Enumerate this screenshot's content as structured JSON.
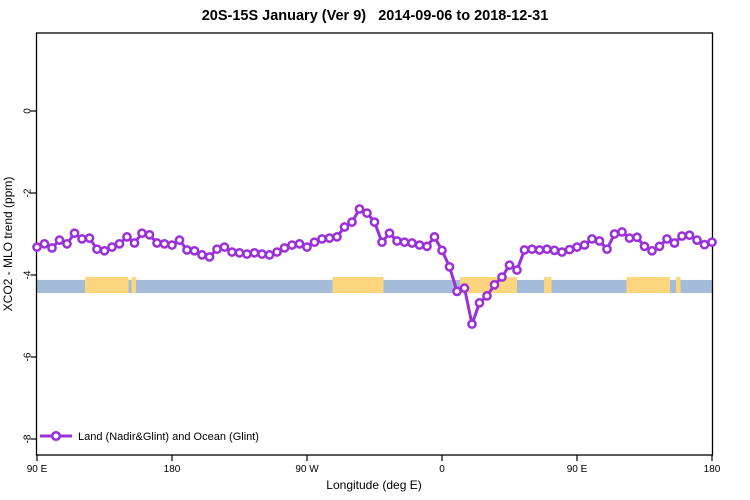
{
  "chart": {
    "title": "20S-15S January (Ver 9)   2014-09-06 to 2018-12-31",
    "xlabel": "Longitude (deg E)",
    "ylabel": "XCO2 - MLO trend (ppm)",
    "legend_label": "Land (Nadir&Glint) and Ocean (Glint)"
  },
  "chart_data": {
    "type": "line",
    "title": "20S-15S January (Ver 9)   2014-09-06 to 2018-12-31",
    "xlabel": "Longitude (deg E)",
    "ylabel": "XCO2 - MLO trend (ppm)",
    "legend_position": "bottom-left",
    "grid": false,
    "xlim_deg": [
      90,
      540
    ],
    "ylim": [
      -8.4,
      1.9
    ],
    "x_ticks": [
      {
        "deg": 90,
        "label": "90 E"
      },
      {
        "deg": 180,
        "label": "180"
      },
      {
        "deg": 270,
        "label": "90 W"
      },
      {
        "deg": 360,
        "label": "0"
      },
      {
        "deg": 450,
        "label": "90 E"
      },
      {
        "deg": 540,
        "label": "180"
      }
    ],
    "y_ticks": [
      {
        "value": 0,
        "label": "0"
      },
      {
        "value": -2,
        "label": "-2"
      },
      {
        "value": -4,
        "label": "-4"
      },
      {
        "value": -6,
        "label": "-6"
      },
      {
        "value": -8,
        "label": "-8"
      }
    ],
    "series": [
      {
        "name": "Land (Nadir&Glint) and Ocean (Glint)",
        "color": "#9b2fd9",
        "marker": "open-circle",
        "x_start_deg": 90,
        "x_step_deg": 5,
        "values": [
          -3.32,
          -3.24,
          -3.34,
          -3.15,
          -3.24,
          -2.98,
          -3.12,
          -3.1,
          -3.37,
          -3.41,
          -3.32,
          -3.24,
          -3.07,
          -3.22,
          -2.98,
          -3.02,
          -3.22,
          -3.24,
          -3.27,
          -3.15,
          -3.39,
          -3.41,
          -3.51,
          -3.56,
          -3.37,
          -3.32,
          -3.44,
          -3.46,
          -3.49,
          -3.46,
          -3.49,
          -3.51,
          -3.44,
          -3.34,
          -3.27,
          -3.24,
          -3.32,
          -3.2,
          -3.12,
          -3.1,
          -3.07,
          -2.83,
          -2.71,
          -2.39,
          -2.49,
          -2.71,
          -3.2,
          -2.98,
          -3.17,
          -3.2,
          -3.22,
          -3.27,
          -3.3,
          -3.07,
          -3.4,
          -3.8,
          -4.4,
          -4.32,
          -5.2,
          -4.68,
          -4.51,
          -4.24,
          -4.05,
          -3.76,
          -3.88,
          -3.39,
          -3.37,
          -3.39,
          -3.37,
          -3.4,
          -3.44,
          -3.38,
          -3.32,
          -3.27,
          -3.12,
          -3.17,
          -3.37,
          -3.0,
          -2.95,
          -3.1,
          -3.08,
          -3.3,
          -3.41,
          -3.3,
          -3.12,
          -3.22,
          -3.05,
          -3.03,
          -3.15,
          -3.26,
          -3.2
        ]
      }
    ],
    "band": {
      "top_value": -4.12,
      "bottom_value": -4.44,
      "base_color": "#a4bcd9",
      "patch_color": "#fcd67f",
      "patch_top_value": -4.05,
      "patches_deg": [
        [
          122,
          151
        ],
        [
          153,
          156
        ],
        [
          287,
          321
        ],
        [
          372,
          410
        ],
        [
          428,
          433
        ],
        [
          483,
          512
        ],
        [
          516,
          519
        ]
      ]
    },
    "colors": {
      "line": "#9b2fd9",
      "marker_fill": "#ffffff",
      "axis": "#000000",
      "background": "#ffffff"
    }
  }
}
